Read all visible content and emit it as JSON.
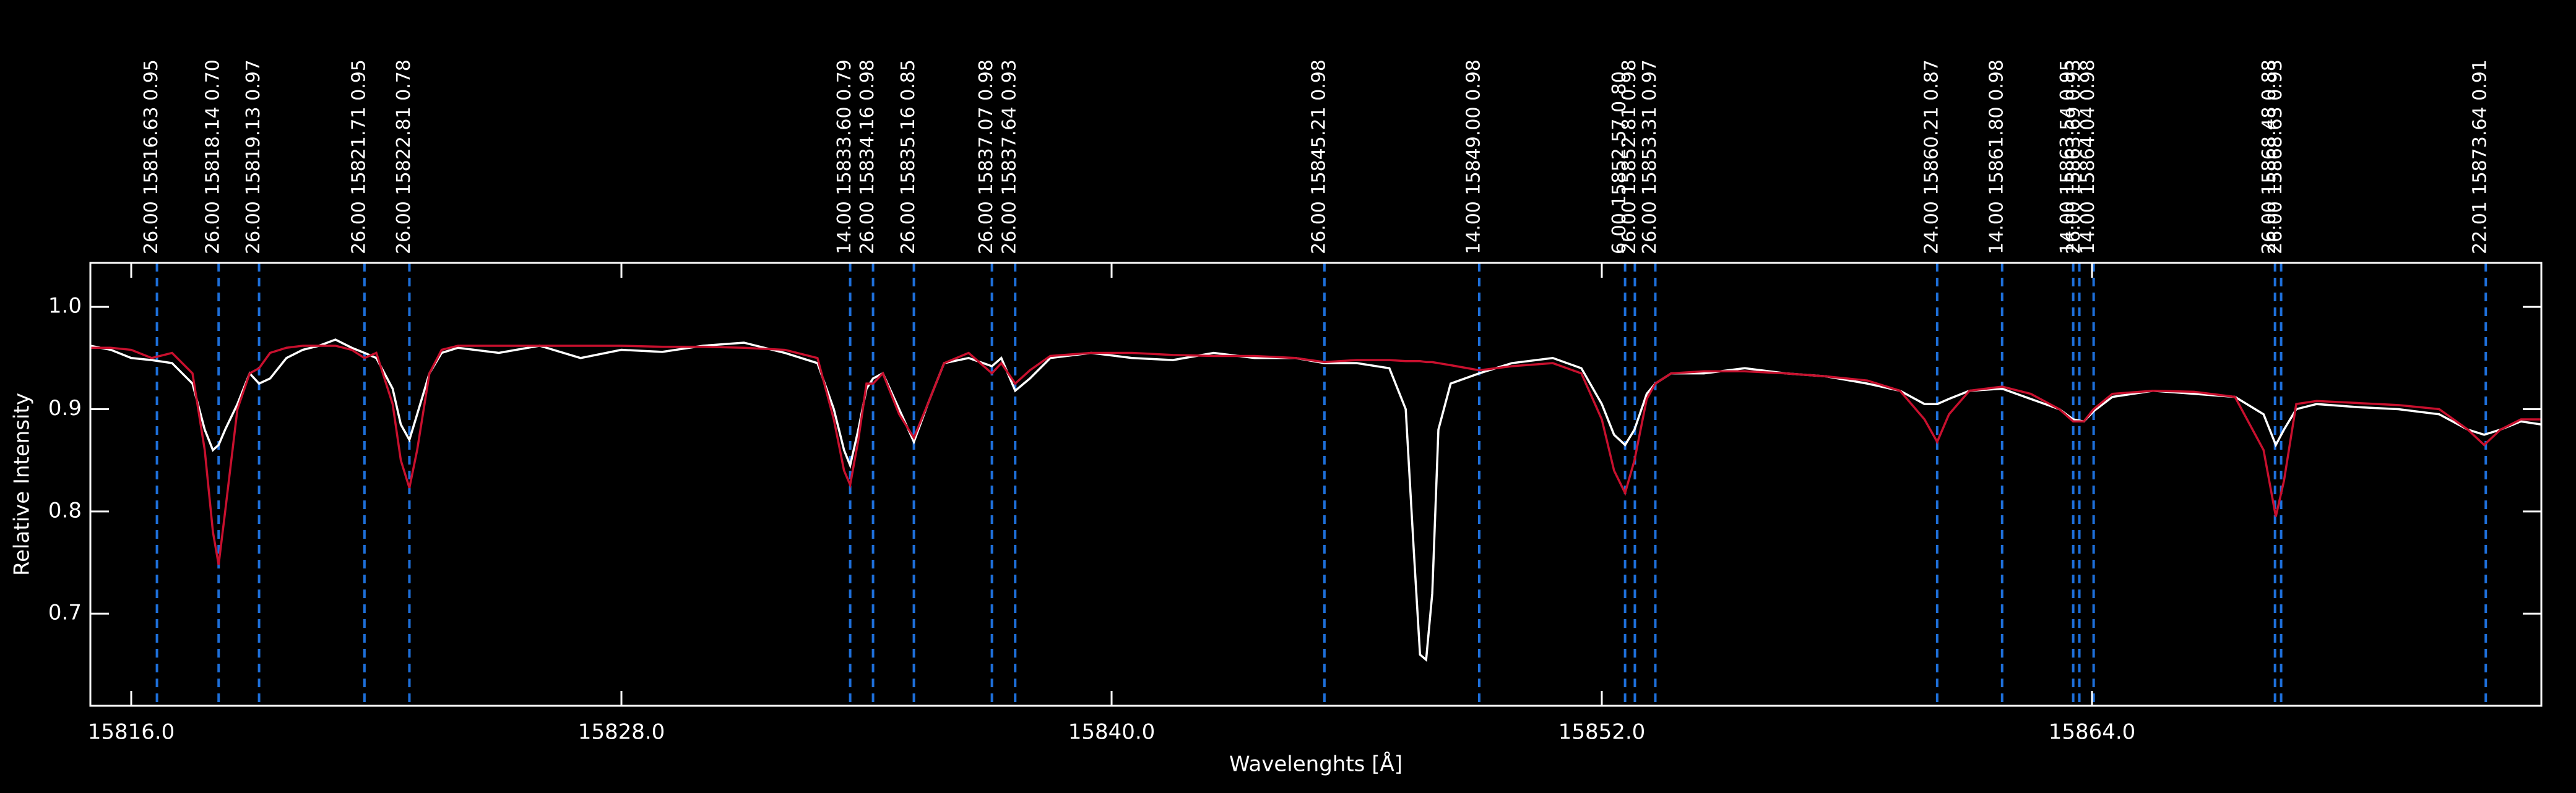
{
  "chart_data": {
    "type": "line",
    "xlabel": "Wavelenghts [Å]",
    "ylabel": "Relative Intensity",
    "xlim": [
      15815.0,
      15875.0
    ],
    "ylim": [
      0.61,
      1.043
    ],
    "xticks": [
      {
        "value": 15816,
        "label": "15816.0"
      },
      {
        "value": 15828,
        "label": "15828.0"
      },
      {
        "value": 15840,
        "label": "15840.0"
      },
      {
        "value": 15852,
        "label": "15852.0"
      },
      {
        "value": 15864,
        "label": "15864.0"
      }
    ],
    "yticks": [
      0.7,
      0.8,
      0.9,
      {
        "value": 1,
        "label": "1.0"
      }
    ],
    "x": [
      15815.0,
      15815.5,
      15816.0,
      15816.5,
      15817.0,
      15817.5,
      15817.8,
      15818.0,
      15818.14,
      15818.3,
      15818.6,
      15818.9,
      15819.13,
      15819.4,
      15819.8,
      15820.2,
      15820.6,
      15821.0,
      15821.4,
      15821.71,
      15822.0,
      15822.4,
      15822.6,
      15822.81,
      15823.0,
      15823.3,
      15823.6,
      15824.0,
      15825,
      15826,
      15827,
      15828,
      15829,
      15830,
      15831,
      15832,
      15832.8,
      15833.2,
      15833.45,
      15833.6,
      15833.8,
      15834.0,
      15834.16,
      15834.4,
      15834.8,
      15835.16,
      15835.5,
      15835.9,
      15836.5,
      15837.07,
      15837.3,
      15837.64,
      15838.0,
      15838.5,
      15839.5,
      15840.5,
      15841.5,
      15842.5,
      15843.5,
      15844.5,
      15845.21,
      15846.0,
      15846.8,
      15847.2,
      15847.4,
      15847.55,
      15847.7,
      15847.85,
      15848.0,
      15848.3,
      15849.0,
      15849.8,
      15850.8,
      15851.5,
      15852.0,
      15852.3,
      15852.57,
      15852.8,
      15853.1,
      15853.31,
      15853.7,
      15854.5,
      15855.5,
      15856.5,
      15857.5,
      15858.5,
      15859.3,
      15859.9,
      15860.21,
      15860.5,
      15861.0,
      15861.8,
      15862.5,
      15863.2,
      15863.54,
      15863.8,
      15864.04,
      15864.5,
      15865.5,
      15866.5,
      15867.5,
      15868.2,
      15868.5,
      15868.7,
      15869.0,
      15869.5,
      15870.5,
      15871.5,
      15872.5,
      15873.2,
      15873.6,
      15874.0,
      15874.5,
      15875.0
    ],
    "series": [
      {
        "color": "#ffffff",
        "values": [
          0.962,
          0.958,
          0.95,
          0.948,
          0.945,
          0.925,
          0.88,
          0.86,
          0.865,
          0.88,
          0.905,
          0.935,
          0.925,
          0.93,
          0.95,
          0.958,
          0.962,
          0.968,
          0.96,
          0.955,
          0.95,
          0.92,
          0.885,
          0.87,
          0.895,
          0.935,
          0.955,
          0.96,
          0.955,
          0.962,
          0.95,
          0.958,
          0.956,
          0.962,
          0.965,
          0.955,
          0.945,
          0.9,
          0.86,
          0.845,
          0.88,
          0.92,
          0.93,
          0.935,
          0.9,
          0.868,
          0.905,
          0.945,
          0.95,
          0.942,
          0.95,
          0.918,
          0.93,
          0.95,
          0.955,
          0.95,
          0.948,
          0.955,
          0.95,
          0.95,
          0.945,
          0.945,
          0.94,
          0.9,
          0.76,
          0.66,
          0.655,
          0.72,
          0.88,
          0.925,
          0.935,
          0.945,
          0.95,
          0.94,
          0.905,
          0.875,
          0.865,
          0.88,
          0.915,
          0.925,
          0.935,
          0.935,
          0.94,
          0.935,
          0.932,
          0.925,
          0.918,
          0.905,
          0.905,
          0.91,
          0.918,
          0.92,
          0.91,
          0.9,
          0.89,
          0.888,
          0.898,
          0.912,
          0.918,
          0.915,
          0.912,
          0.895,
          0.865,
          0.88,
          0.9,
          0.905,
          0.902,
          0.9,
          0.895,
          0.88,
          0.875,
          0.88,
          0.888,
          0.885
        ]
      },
      {
        "color": "#c8102e",
        "values": [
          0.96,
          0.96,
          0.958,
          0.95,
          0.955,
          0.935,
          0.86,
          0.78,
          0.748,
          0.8,
          0.9,
          0.935,
          0.94,
          0.955,
          0.96,
          0.962,
          0.962,
          0.962,
          0.958,
          0.95,
          0.955,
          0.905,
          0.85,
          0.823,
          0.86,
          0.935,
          0.958,
          0.962,
          0.962,
          0.962,
          0.962,
          0.962,
          0.961,
          0.961,
          0.96,
          0.958,
          0.95,
          0.89,
          0.84,
          0.826,
          0.87,
          0.925,
          0.925,
          0.935,
          0.895,
          0.872,
          0.905,
          0.945,
          0.955,
          0.935,
          0.945,
          0.925,
          0.938,
          0.952,
          0.955,
          0.955,
          0.953,
          0.952,
          0.952,
          0.95,
          0.946,
          0.948,
          0.948,
          0.947,
          0.947,
          0.947,
          0.946,
          0.946,
          0.945,
          0.943,
          0.938,
          0.942,
          0.945,
          0.935,
          0.89,
          0.84,
          0.818,
          0.85,
          0.91,
          0.925,
          0.935,
          0.937,
          0.937,
          0.935,
          0.932,
          0.928,
          0.918,
          0.89,
          0.868,
          0.895,
          0.918,
          0.922,
          0.915,
          0.9,
          0.888,
          0.888,
          0.9,
          0.915,
          0.918,
          0.917,
          0.912,
          0.86,
          0.795,
          0.83,
          0.905,
          0.908,
          0.906,
          0.904,
          0.9,
          0.88,
          0.865,
          0.88,
          0.89,
          0.89
        ]
      }
    ],
    "line_color": "#1e6fd9",
    "lines": [
      {
        "label": "26.00 15816.63 0.95",
        "wavelength": 15816.63
      },
      {
        "label": "26.00 15818.14 0.70",
        "wavelength": 15818.14
      },
      {
        "label": "26.00 15819.13 0.97",
        "wavelength": 15819.13
      },
      {
        "label": "26.00 15821.71 0.95",
        "wavelength": 15821.71
      },
      {
        "label": "26.00 15822.81 0.78",
        "wavelength": 15822.81
      },
      {
        "label": "14.00 15833.60 0.79",
        "wavelength": 15833.6
      },
      {
        "label": "26.00 15834.16 0.98",
        "wavelength": 15834.16
      },
      {
        "label": "26.00 15835.16 0.85",
        "wavelength": 15835.16
      },
      {
        "label": "26.00 15837.07 0.98",
        "wavelength": 15837.07
      },
      {
        "label": "26.00 15837.64 0.93",
        "wavelength": 15837.64
      },
      {
        "label": "26.00 15845.21 0.98",
        "wavelength": 15845.21
      },
      {
        "label": "14.00 15849.00 0.98",
        "wavelength": 15849.0
      },
      {
        "label": "6.00 15852.57 0.80",
        "wavelength": 15852.57
      },
      {
        "label": "26.00 15852.81 0.98",
        "wavelength": 15852.81
      },
      {
        "label": "26.00 15853.31 0.97",
        "wavelength": 15853.31
      },
      {
        "label": "24.00 15860.21 0.87",
        "wavelength": 15860.21
      },
      {
        "label": "14.00 15861.80 0.98",
        "wavelength": 15861.8
      },
      {
        "label": "14.00 15863.54 0.95",
        "wavelength": 15863.54
      },
      {
        "label": "26.00 15863.69 0.93",
        "wavelength": 15863.69
      },
      {
        "label": "14.00 15864.04 0.98",
        "wavelength": 15864.04
      },
      {
        "label": "26.00 15868.48 0.88",
        "wavelength": 15868.48
      },
      {
        "label": "26.00 15868.63 0.93",
        "wavelength": 15868.63
      },
      {
        "label": "22.01 15873.64 0.91",
        "wavelength": 15873.64
      }
    ]
  }
}
